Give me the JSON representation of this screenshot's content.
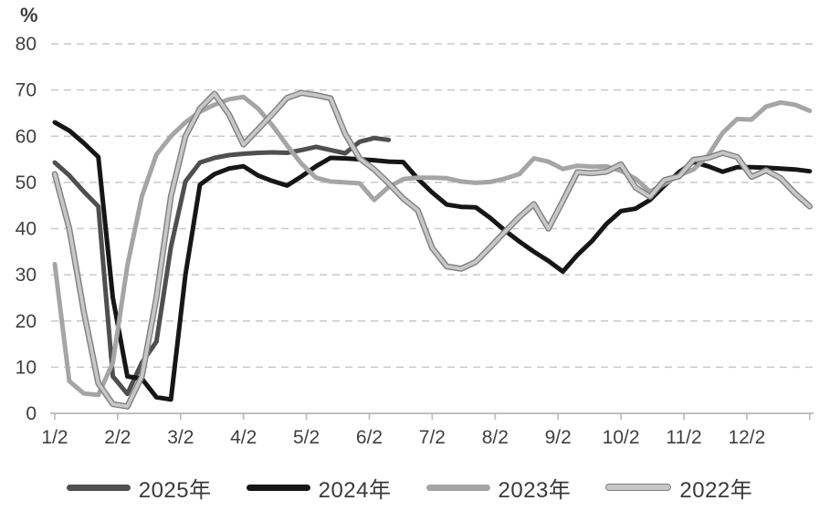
{
  "chart": {
    "unit_label": "%",
    "colors": {
      "grid": "#c9c9c9",
      "axis": "#bfbfbf",
      "text": "#3f3f3f",
      "background": "#ffffff"
    }
  },
  "chart_data": {
    "type": "line",
    "title": "",
    "xlabel": "",
    "ylabel": "%",
    "ylim": [
      0,
      80
    ],
    "y_ticks": [
      0,
      10,
      20,
      30,
      40,
      50,
      60,
      70,
      80
    ],
    "x_tick_labels": [
      "1/2",
      "2/2",
      "3/2",
      "4/2",
      "5/2",
      "6/2",
      "7/2",
      "8/2",
      "9/2",
      "10/2",
      "11/2",
      "12/2"
    ],
    "x_unit": "weekly points, Jan–Dec",
    "grid": "dashed horizontal",
    "legend_position": "bottom",
    "series": [
      {
        "name": "2025年",
        "color": "#4f4f4f",
        "outlined": false,
        "values": [
          54.3,
          51.5,
          48,
          44.8,
          8,
          4.2,
          11,
          15.5,
          36,
          50.2,
          54.3,
          55.3,
          55.9,
          56.2,
          56.4,
          56.5,
          56.4,
          57,
          57.7,
          57,
          56.3,
          58.8,
          59.6,
          59.2
        ]
      },
      {
        "name": "2024年",
        "color": "#161616",
        "outlined": false,
        "values": [
          63,
          61.2,
          58.5,
          55.5,
          25,
          8,
          7.5,
          3.5,
          3,
          30,
          49.5,
          51.8,
          53,
          53.5,
          51.5,
          50.3,
          49.3,
          51.3,
          53.5,
          55.3,
          55.2,
          55,
          54.8,
          54.5,
          54.4,
          50.8,
          47.8,
          45.2,
          44.7,
          44.6,
          42.3,
          39.6,
          37.2,
          35,
          33,
          30.7,
          34.3,
          37.3,
          41,
          43.8,
          44.3,
          46.2,
          49.3,
          52.2,
          54.4,
          53.5,
          52.3,
          53.3,
          53.3,
          53.2,
          53,
          52.8,
          52.4
        ]
      },
      {
        "name": "2023年",
        "color": "#a5a5a5",
        "outlined": false,
        "values": [
          32.3,
          7,
          4.3,
          4,
          11,
          32,
          47,
          56,
          60,
          63,
          65.3,
          66.8,
          68,
          68.5,
          66,
          62.3,
          58,
          54,
          51,
          50.2,
          50,
          49.8,
          46.2,
          49,
          50.7,
          51,
          51,
          50.9,
          50.2,
          49.9,
          50.1,
          50.8,
          51.8,
          55.2,
          54.5,
          52.9,
          53.6,
          53.4,
          53.5,
          52.5,
          50.8,
          48,
          49.7,
          51.5,
          52.8,
          55.8,
          60.7,
          63.7,
          63.6,
          66.4,
          67.3,
          66.8,
          65.5
        ]
      },
      {
        "name": "2022年",
        "color": "#c7c7c7",
        "outline_color": "#7f7f7f",
        "outlined": true,
        "values": [
          51.8,
          40,
          22,
          6.5,
          2,
          1.5,
          8,
          25,
          47,
          60,
          66,
          69.2,
          64.7,
          58.2,
          61.5,
          64.8,
          68.3,
          69.4,
          68.9,
          68.2,
          60.5,
          55.2,
          52.8,
          49.8,
          46.5,
          44,
          35.8,
          31.8,
          31.3,
          32.8,
          36,
          39.3,
          42.5,
          45.3,
          40,
          46,
          52.2,
          52,
          52.3,
          53.9,
          48.9,
          46.9,
          50.5,
          51.3,
          54.9,
          55.3,
          56.4,
          55.5,
          51.2,
          52.6,
          50.9,
          47.6,
          44.8
        ]
      }
    ]
  }
}
